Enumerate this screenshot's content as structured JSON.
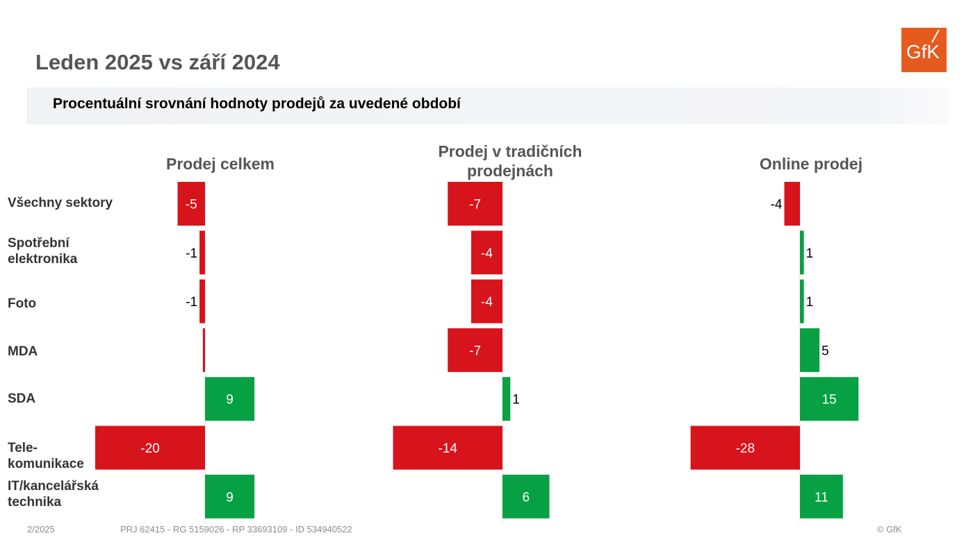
{
  "header": {
    "title": "Leden 2025 vs září 2024",
    "subtitle": "Procentuální srovnání hodnoty prodejů za uvedené období",
    "logo_text": "GfK"
  },
  "colors": {
    "negative": "#d7131b",
    "positive": "#07a144",
    "logo_bg": "#e55b1d",
    "title_text": "#555555"
  },
  "rows": {
    "labels": [
      [
        "Všechny sektory"
      ],
      [
        "Spotřební",
        "elektronika"
      ],
      [
        "Foto"
      ],
      [
        "MDA"
      ],
      [
        "SDA"
      ],
      [
        "Tele-",
        "komunikace"
      ],
      [
        "IT/kancelářská",
        "technika"
      ]
    ]
  },
  "chart_data": [
    {
      "type": "bar",
      "orientation": "horizontal",
      "title": "Prodej celkem",
      "categories": [
        "Všechny sektory",
        "Spotřební elektronika",
        "Foto",
        "MDA",
        "SDA",
        "Tele-komunikace",
        "IT/kancelářská technika"
      ],
      "values": [
        -5,
        -1,
        -1,
        -0.4,
        9,
        -20,
        9
      ],
      "data_labels": [
        "-5",
        "-1",
        "-1",
        "",
        "9",
        "-20",
        "9"
      ]
    },
    {
      "type": "bar",
      "orientation": "horizontal",
      "title": "Prodej v tradičních prodejnách",
      "categories": [
        "Všechny sektory",
        "Spotřební elektronika",
        "Foto",
        "MDA",
        "SDA",
        "Tele-komunikace",
        "IT/kancelářská technika"
      ],
      "values": [
        -7,
        -4,
        -4,
        -7,
        1,
        -14,
        6
      ],
      "data_labels": [
        "-7",
        "-4",
        "-4",
        "-7",
        "1",
        "-14",
        "6"
      ]
    },
    {
      "type": "bar",
      "orientation": "horizontal",
      "title": "Online prodej",
      "categories": [
        "Všechny sektory",
        "Spotřební elektronika",
        "Foto",
        "MDA",
        "SDA",
        "Tele-komunikace",
        "IT/kancelářská technika"
      ],
      "values": [
        -4,
        1,
        1,
        5,
        15,
        -28,
        11
      ],
      "data_labels": [
        "-4",
        "1",
        "1",
        "5",
        "15",
        "-28",
        "11"
      ]
    }
  ],
  "chart_titles_lines": [
    [
      "Prodej celkem"
    ],
    [
      "Prodej v tradičních",
      "prodejnách"
    ],
    [
      "Online prodej"
    ]
  ],
  "footer": {
    "date": "2/2025",
    "project": "PRJ 62415 - RG 5159026 - RP 33693109 - ID 534940522",
    "copyright": "© GfK"
  }
}
